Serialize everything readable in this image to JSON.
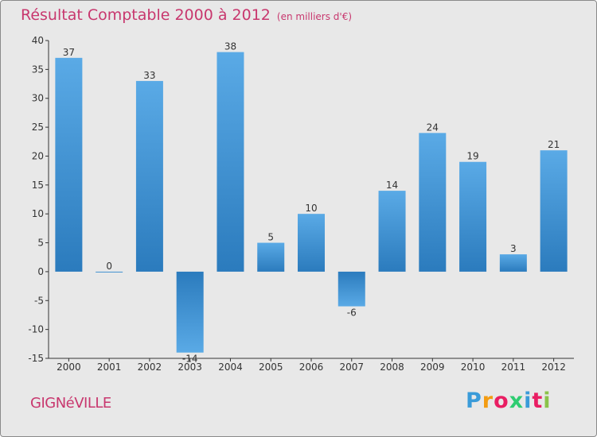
{
  "chart_data": {
    "type": "bar",
    "title": "Résultat Comptable 2000 à 2012",
    "subtitle": "(en milliers d'€)",
    "categories": [
      "2000",
      "2001",
      "2002",
      "2003",
      "2004",
      "2005",
      "2006",
      "2007",
      "2008",
      "2009",
      "2010",
      "2011",
      "2012"
    ],
    "values": [
      37,
      0,
      33,
      -14,
      38,
      5,
      10,
      -6,
      14,
      24,
      19,
      3,
      21
    ],
    "value_labels": [
      "37",
      "0",
      "33",
      "-14",
      "38",
      "5",
      "10",
      "-6",
      "14",
      "24",
      "19",
      "3",
      "21"
    ],
    "ylim": [
      -15,
      40
    ],
    "yticks": [
      -15,
      -10,
      -5,
      0,
      5,
      10,
      15,
      20,
      25,
      30,
      35,
      40
    ],
    "xlabel": "",
    "ylabel": "",
    "grid": false,
    "colors": {
      "bar_light": "#5aaae6",
      "bar_dark": "#2b7bbd",
      "title": "#c8376e"
    }
  },
  "footer": {
    "town": "GIGNéVILLE",
    "brand_letters": [
      "P",
      "r",
      "o",
      "x",
      "i",
      "t",
      "i"
    ],
    "brand_colors": [
      "#3a9bd9",
      "#f39c12",
      "#e91e63",
      "#2ecc71",
      "#3a9bd9",
      "#e91e63",
      "#8bc34a"
    ]
  }
}
